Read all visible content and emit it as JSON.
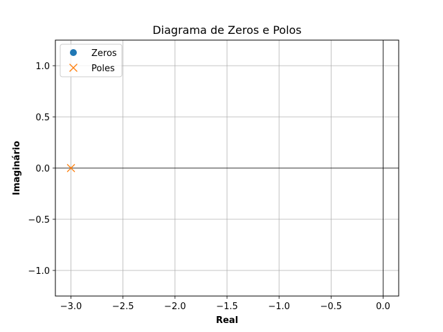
{
  "chart_data": {
    "type": "scatter",
    "title": "Diagrama de Zeros e Polos",
    "xlabel": "Real",
    "ylabel": "Imaginário",
    "xlim": [
      -3.15,
      0.15
    ],
    "ylim": [
      -1.25,
      1.25
    ],
    "xticks": [
      -3.0,
      -2.5,
      -2.0,
      -1.5,
      -1.0,
      -0.5,
      0.0
    ],
    "xtick_labels": [
      "−3.0",
      "−2.5",
      "−2.0",
      "−1.5",
      "−1.0",
      "−0.5",
      "0.0"
    ],
    "yticks": [
      -1.0,
      -0.5,
      0.0,
      0.5,
      1.0
    ],
    "ytick_labels": [
      "−1.0",
      "−0.5",
      "0.0",
      "0.5",
      "1.0"
    ],
    "grid": true,
    "reference_lines": {
      "x": 0,
      "y": 0
    },
    "legend": "top-left",
    "series": [
      {
        "name": "Zeros",
        "marker": "circle",
        "color": "#1f77b4",
        "points": []
      },
      {
        "name": "Poles",
        "marker": "x",
        "color": "#ff7f0e",
        "points": [
          {
            "x": -3.0,
            "y": 0.0
          }
        ]
      }
    ]
  }
}
